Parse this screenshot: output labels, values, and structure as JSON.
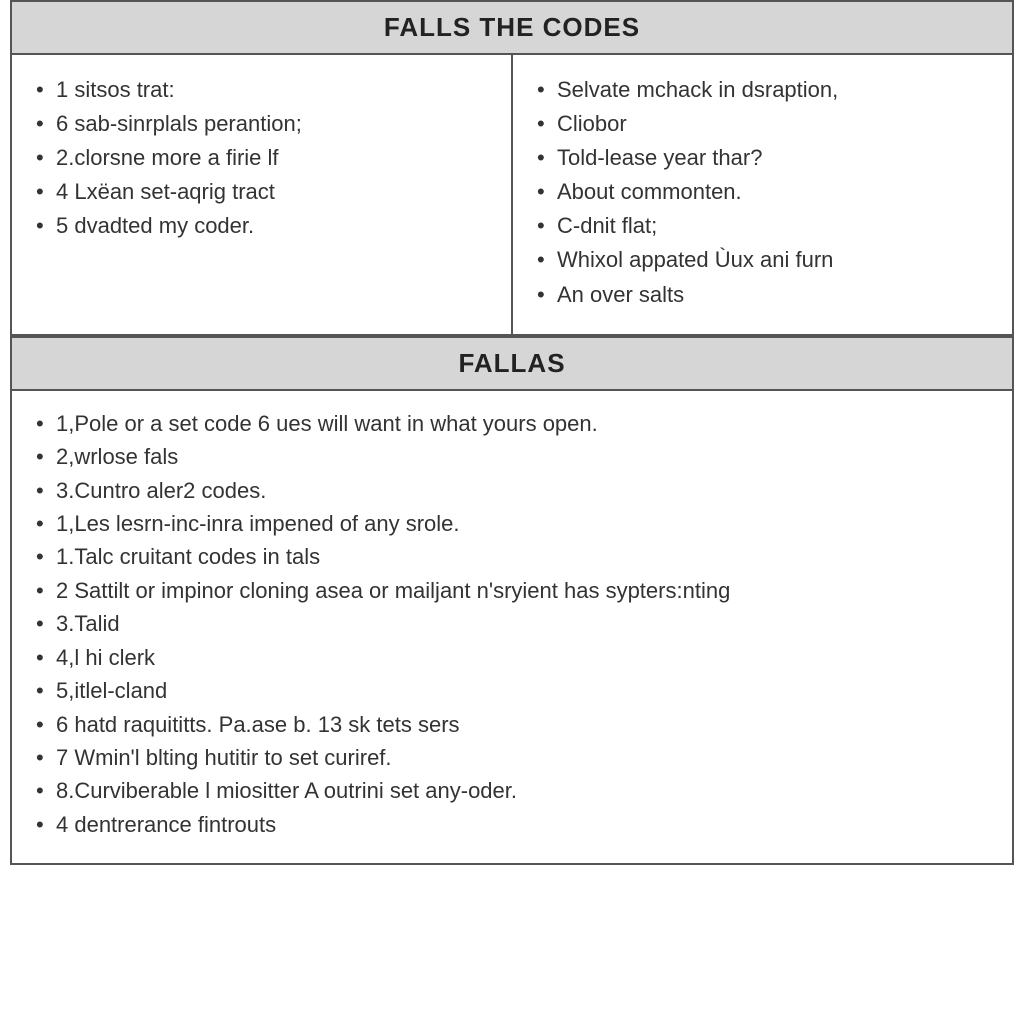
{
  "section1": {
    "title": "FALLS THE CODES",
    "left_items": [
      "1 sitsos trat:",
      "6 sab-sinrplals perantion;",
      "2.clorsne more a firie lf",
      "4 Lxëan set-aqrig tract",
      "5 dvadted my coder."
    ],
    "right_items": [
      "Selvate mchack in dsraption,",
      "Cliobor",
      "Told-lease year thar?",
      "About commonten.",
      "C-dnit flat;",
      "Whixol appated Ùux ani furn",
      "An over salts"
    ]
  },
  "section2": {
    "title": "FALLAS",
    "items": [
      "1,Pole or a set code 6 ues will want in what yours open.",
      "2,wrlose fals",
      "3.Cuntro aler2 codes.",
      "1,Les lesrn-inc-inra impened of any srole.",
      "1.Talc cruitant codes in tals",
      "2 Sattilt or impinor cloning asea or mailjant n'sryient has sypters:nting",
      "3.Talid",
      "4,l hi clerk",
      "5,itlel-cland",
      "6 hatd raquititts. Pa.ase b. 13 sk tets sers",
      "7 Wmin'l blting hutitir to set curiref.",
      "8.Curviberable l miositter A outrini set any-oder.",
      "4 dentrerance fintrouts"
    ]
  },
  "style": {
    "header_bg": "#d6d6d6",
    "border_color": "#555555",
    "text_color": "#333333",
    "title_fontsize": 26,
    "body_fontsize": 22,
    "font_family": "Arial"
  }
}
